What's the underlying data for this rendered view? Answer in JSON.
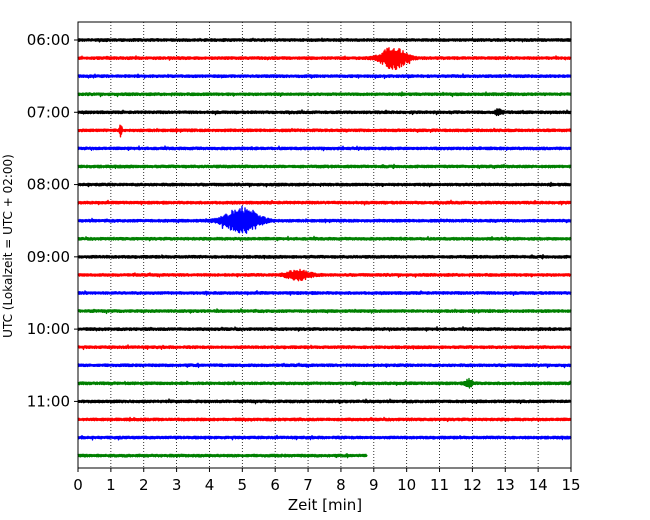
{
  "chart_data": {
    "type": "line",
    "xlabel": "Zeit  [min]",
    "ylabel": "UTC (Lokalzeit = UTC + 02:00)",
    "xlim": [
      0,
      15
    ],
    "x_ticks": [
      0,
      1,
      2,
      3,
      4,
      5,
      6,
      7,
      8,
      9,
      10,
      11,
      12,
      13,
      14,
      15
    ],
    "x_tick_labels": [
      "0",
      "1",
      "2",
      "3",
      "4",
      "5",
      "6",
      "7",
      "8",
      "9",
      "10",
      "11",
      "12",
      "13",
      "14",
      "15"
    ],
    "y_tick_labels": [
      "06:00",
      "07:00",
      "08:00",
      "09:00",
      "10:00",
      "11:00"
    ],
    "grid": "vertical dotted",
    "row_interval_minutes": 15,
    "row_colors": [
      "#000000",
      "#ff0000",
      "#0000ff",
      "#008000"
    ],
    "rows": [
      {
        "start": "06:00",
        "color": "#000000",
        "end_min": 15,
        "noise": 1.3,
        "events": []
      },
      {
        "start": "06:15",
        "color": "#ff0000",
        "end_min": 15,
        "noise": 1.3,
        "events": [
          {
            "center_min": 9.6,
            "width_min": 0.55,
            "amp": 11
          }
        ]
      },
      {
        "start": "06:30",
        "color": "#0000ff",
        "end_min": 15,
        "noise": 1.3,
        "events": []
      },
      {
        "start": "06:45",
        "color": "#008000",
        "end_min": 15,
        "noise": 1.3,
        "events": []
      },
      {
        "start": "07:00",
        "color": "#000000",
        "end_min": 15,
        "noise": 1.3,
        "events": [
          {
            "center_min": 12.8,
            "width_min": 0.15,
            "amp": 3
          }
        ]
      },
      {
        "start": "07:15",
        "color": "#ff0000",
        "end_min": 15,
        "noise": 1.3,
        "events": [
          {
            "center_min": 1.3,
            "width_min": 0.05,
            "amp": 8
          }
        ]
      },
      {
        "start": "07:30",
        "color": "#0000ff",
        "end_min": 15,
        "noise": 1.3,
        "events": []
      },
      {
        "start": "07:45",
        "color": "#008000",
        "end_min": 15,
        "noise": 1.3,
        "events": []
      },
      {
        "start": "08:00",
        "color": "#000000",
        "end_min": 15,
        "noise": 1.3,
        "events": []
      },
      {
        "start": "08:15",
        "color": "#ff0000",
        "end_min": 15,
        "noise": 1.3,
        "events": []
      },
      {
        "start": "08:30",
        "color": "#0000ff",
        "end_min": 15,
        "noise": 1.3,
        "events": [
          {
            "center_min": 5.0,
            "width_min": 0.75,
            "amp": 13
          }
        ]
      },
      {
        "start": "08:45",
        "color": "#008000",
        "end_min": 15,
        "noise": 1.3,
        "events": []
      },
      {
        "start": "09:00",
        "color": "#000000",
        "end_min": 15,
        "noise": 1.3,
        "events": []
      },
      {
        "start": "09:15",
        "color": "#ff0000",
        "end_min": 15,
        "noise": 1.3,
        "events": [
          {
            "center_min": 6.7,
            "width_min": 0.5,
            "amp": 5
          }
        ]
      },
      {
        "start": "09:30",
        "color": "#0000ff",
        "end_min": 15,
        "noise": 1.3,
        "events": []
      },
      {
        "start": "09:45",
        "color": "#008000",
        "end_min": 15,
        "noise": 1.3,
        "events": []
      },
      {
        "start": "10:00",
        "color": "#000000",
        "end_min": 15,
        "noise": 1.3,
        "events": []
      },
      {
        "start": "10:15",
        "color": "#ff0000",
        "end_min": 15,
        "noise": 1.3,
        "events": []
      },
      {
        "start": "10:30",
        "color": "#0000ff",
        "end_min": 15,
        "noise": 1.3,
        "events": []
      },
      {
        "start": "10:45",
        "color": "#008000",
        "end_min": 15,
        "noise": 1.3,
        "events": [
          {
            "center_min": 11.9,
            "width_min": 0.15,
            "amp": 4
          }
        ]
      },
      {
        "start": "11:00",
        "color": "#000000",
        "end_min": 15,
        "noise": 1.3,
        "events": []
      },
      {
        "start": "11:15",
        "color": "#ff0000",
        "end_min": 15,
        "noise": 1.3,
        "events": []
      },
      {
        "start": "11:30",
        "color": "#0000ff",
        "end_min": 15,
        "noise": 1.3,
        "events": []
      },
      {
        "start": "11:45",
        "color": "#008000",
        "end_min": 8.8,
        "noise": 1.3,
        "events": []
      }
    ]
  }
}
